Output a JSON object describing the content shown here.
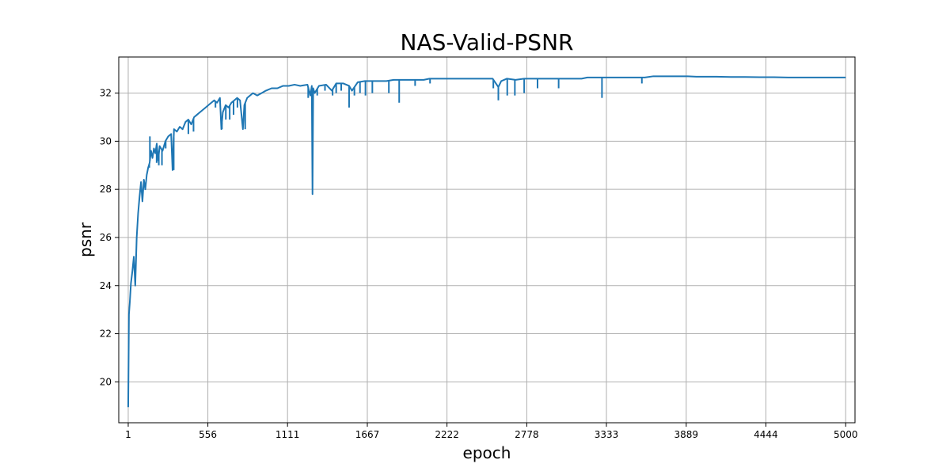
{
  "chart_data": {
    "type": "line",
    "title": "NAS-Valid-PSNR",
    "xlabel": "epoch",
    "ylabel": "psnr",
    "xlim": [
      -65,
      5065
    ],
    "ylim": [
      18.3,
      33.5
    ],
    "x_ticks": [
      1,
      556,
      1111,
      1667,
      2222,
      2778,
      3333,
      3889,
      4444,
      5000
    ],
    "x_tick_labels": [
      "1",
      "556",
      "1111",
      "1667",
      "2222",
      "2778",
      "3333",
      "3889",
      "4444",
      "5000"
    ],
    "y_ticks": [
      20,
      22,
      24,
      26,
      28,
      30,
      32
    ],
    "y_tick_labels": [
      "20",
      "22",
      "24",
      "26",
      "28",
      "30",
      "32"
    ],
    "grid": true,
    "line_color": "#1f77b4",
    "series": [
      {
        "name": "",
        "points": [
          [
            1,
            18.95
          ],
          [
            6,
            22.8
          ],
          [
            12,
            23.3
          ],
          [
            20,
            24.1
          ],
          [
            30,
            24.6
          ],
          [
            40,
            25.2
          ],
          [
            50,
            24.0
          ],
          [
            60,
            26.0
          ],
          [
            70,
            27.0
          ],
          [
            80,
            27.7
          ],
          [
            90,
            28.3
          ],
          [
            100,
            27.5
          ],
          [
            110,
            28.4
          ],
          [
            120,
            28.0
          ],
          [
            130,
            28.6
          ],
          [
            140,
            28.9
          ],
          [
            150,
            29.1
          ],
          [
            160,
            29.6
          ],
          [
            170,
            29.3
          ],
          [
            180,
            29.7
          ],
          [
            190,
            29.5
          ],
          [
            200,
            29.9
          ],
          [
            210,
            29.2
          ],
          [
            220,
            29.8
          ],
          [
            240,
            29.6
          ],
          [
            260,
            30.0
          ],
          [
            280,
            30.2
          ],
          [
            300,
            30.3
          ],
          [
            310,
            28.8
          ],
          [
            320,
            30.5
          ],
          [
            340,
            30.4
          ],
          [
            360,
            30.6
          ],
          [
            380,
            30.5
          ],
          [
            400,
            30.8
          ],
          [
            420,
            30.9
          ],
          [
            440,
            30.7
          ],
          [
            460,
            31.0
          ],
          [
            480,
            31.1
          ],
          [
            500,
            31.2
          ],
          [
            520,
            31.3
          ],
          [
            540,
            31.4
          ],
          [
            560,
            31.5
          ],
          [
            580,
            31.6
          ],
          [
            600,
            31.7
          ],
          [
            620,
            31.6
          ],
          [
            640,
            31.8
          ],
          [
            650,
            30.5
          ],
          [
            660,
            31.2
          ],
          [
            680,
            31.5
          ],
          [
            700,
            31.4
          ],
          [
            720,
            31.6
          ],
          [
            740,
            31.7
          ],
          [
            760,
            31.8
          ],
          [
            780,
            31.7
          ],
          [
            800,
            30.5
          ],
          [
            810,
            31.5
          ],
          [
            830,
            31.8
          ],
          [
            850,
            31.9
          ],
          [
            870,
            32.0
          ],
          [
            900,
            31.9
          ],
          [
            930,
            32.0
          ],
          [
            960,
            32.1
          ],
          [
            1000,
            32.2
          ],
          [
            1040,
            32.2
          ],
          [
            1080,
            32.3
          ],
          [
            1120,
            32.3
          ],
          [
            1160,
            32.35
          ],
          [
            1200,
            32.3
          ],
          [
            1250,
            32.35
          ],
          [
            1270,
            31.9
          ],
          [
            1280,
            32.3
          ],
          [
            1285,
            27.8
          ],
          [
            1290,
            32.2
          ],
          [
            1300,
            32.0
          ],
          [
            1330,
            32.3
          ],
          [
            1380,
            32.35
          ],
          [
            1420,
            32.1
          ],
          [
            1450,
            32.4
          ],
          [
            1500,
            32.4
          ],
          [
            1540,
            32.3
          ],
          [
            1560,
            32.1
          ],
          [
            1600,
            32.45
          ],
          [
            1650,
            32.5
          ],
          [
            1700,
            32.5
          ],
          [
            1760,
            32.5
          ],
          [
            1800,
            32.5
          ],
          [
            1850,
            32.55
          ],
          [
            1900,
            32.55
          ],
          [
            1960,
            32.55
          ],
          [
            2000,
            32.55
          ],
          [
            2060,
            32.55
          ],
          [
            2100,
            32.6
          ],
          [
            2160,
            32.6
          ],
          [
            2200,
            32.6
          ],
          [
            2260,
            32.6
          ],
          [
            2300,
            32.6
          ],
          [
            2360,
            32.6
          ],
          [
            2400,
            32.6
          ],
          [
            2460,
            32.6
          ],
          [
            2500,
            32.6
          ],
          [
            2540,
            32.6
          ],
          [
            2580,
            32.25
          ],
          [
            2600,
            32.5
          ],
          [
            2640,
            32.6
          ],
          [
            2700,
            32.55
          ],
          [
            2760,
            32.6
          ],
          [
            2800,
            32.6
          ],
          [
            2860,
            32.6
          ],
          [
            2900,
            32.6
          ],
          [
            2960,
            32.6
          ],
          [
            3000,
            32.6
          ],
          [
            3060,
            32.6
          ],
          [
            3100,
            32.6
          ],
          [
            3160,
            32.6
          ],
          [
            3200,
            32.65
          ],
          [
            3260,
            32.65
          ],
          [
            3300,
            32.65
          ],
          [
            3360,
            32.65
          ],
          [
            3400,
            32.65
          ],
          [
            3460,
            32.65
          ],
          [
            3500,
            32.65
          ],
          [
            3560,
            32.65
          ],
          [
            3600,
            32.65
          ],
          [
            3660,
            32.7
          ],
          [
            3700,
            32.7
          ],
          [
            3760,
            32.7
          ],
          [
            3800,
            32.7
          ],
          [
            3860,
            32.7
          ],
          [
            3900,
            32.7
          ],
          [
            3960,
            32.68
          ],
          [
            4000,
            32.68
          ],
          [
            4100,
            32.68
          ],
          [
            4200,
            32.67
          ],
          [
            4300,
            32.67
          ],
          [
            4400,
            32.66
          ],
          [
            4500,
            32.66
          ],
          [
            4600,
            32.65
          ],
          [
            4700,
            32.65
          ],
          [
            4800,
            32.65
          ],
          [
            4900,
            32.65
          ],
          [
            5000,
            32.65
          ]
        ],
        "dips": [
          [
            148,
            28.9
          ],
          [
            152,
            30.2
          ],
          [
            199,
            29.1
          ],
          [
            214,
            29.0
          ],
          [
            236,
            29.0
          ],
          [
            262,
            29.7
          ],
          [
            318,
            28.8
          ],
          [
            420,
            30.3
          ],
          [
            456,
            30.4
          ],
          [
            609,
            31.4
          ],
          [
            654,
            30.5
          ],
          [
            681,
            30.9
          ],
          [
            708,
            30.9
          ],
          [
            735,
            31.1
          ],
          [
            762,
            31.4
          ],
          [
            816,
            30.5
          ],
          [
            1255,
            31.8
          ],
          [
            1272,
            31.9
          ],
          [
            1285,
            27.8
          ],
          [
            1318,
            31.9
          ],
          [
            1372,
            32.1
          ],
          [
            1425,
            31.9
          ],
          [
            1450,
            32.0
          ],
          [
            1485,
            32.1
          ],
          [
            1540,
            31.4
          ],
          [
            1577,
            31.9
          ],
          [
            1616,
            32.0
          ],
          [
            1654,
            31.9
          ],
          [
            1702,
            32.0
          ],
          [
            1817,
            32.0
          ],
          [
            1889,
            31.6
          ],
          [
            2000,
            32.3
          ],
          [
            2104,
            32.4
          ],
          [
            2545,
            32.2
          ],
          [
            2580,
            31.7
          ],
          [
            2642,
            31.9
          ],
          [
            2695,
            31.9
          ],
          [
            2760,
            32.0
          ],
          [
            2853,
            32.2
          ],
          [
            3000,
            32.2
          ],
          [
            3302,
            31.8
          ],
          [
            3580,
            32.4
          ]
        ]
      }
    ]
  }
}
